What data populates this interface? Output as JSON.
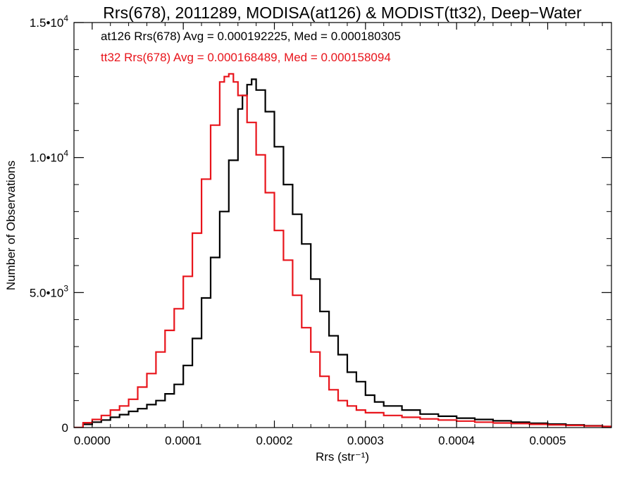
{
  "chart_data": {
    "type": "line",
    "title": "Rrs(678), 2011289, MODISA(at126) & MODIST(tt32), Deep−Water",
    "xlabel": "Rrs (str⁻¹)",
    "ylabel": "Number of Observations",
    "xlim": [
      -2e-05,
      0.00057
    ],
    "ylim": [
      0,
      15000
    ],
    "x_ticks": [
      0.0,
      0.0001,
      0.0002,
      0.0003,
      0.0004,
      0.0005
    ],
    "x_tick_labels": [
      "0.0000",
      "0.0001",
      "0.0002",
      "0.0003",
      "0.0004",
      "0.0005"
    ],
    "y_ticks": [
      0,
      5000,
      10000,
      15000
    ],
    "y_tick_labels": [
      {
        "mantissa": "0",
        "exponent": ""
      },
      {
        "mantissa": "5.0•10",
        "exponent": "3"
      },
      {
        "mantissa": "1.0•10",
        "exponent": "4"
      },
      {
        "mantissa": "1.5•10",
        "exponent": "4"
      }
    ],
    "grid": false,
    "step_histogram": true,
    "annotations": [
      {
        "text": "at126 Rrs(678) Avg = 0.000192225, Med = 0.000180305",
        "color": "#000000"
      },
      {
        "text": "tt32 Rrs(678) Avg = 0.000168489, Med = 0.000158094",
        "color": "#e8141b"
      }
    ],
    "series": [
      {
        "color": "#000000",
        "x": [
          -2e-05,
          -1e-05,
          0.0,
          1e-05,
          2e-05,
          3e-05,
          4e-05,
          5e-05,
          6e-05,
          7e-05,
          8e-05,
          9e-05,
          0.0001,
          0.00011,
          0.00012,
          0.00013,
          0.00014,
          0.00015,
          0.00016,
          0.000165,
          0.00017,
          0.000175,
          0.00018,
          0.00019,
          0.0002,
          0.00021,
          0.00022,
          0.00023,
          0.00024,
          0.00025,
          0.00026,
          0.00027,
          0.00028,
          0.00029,
          0.0003,
          0.00031,
          0.00032,
          0.00034,
          0.00036,
          0.00038,
          0.0004,
          0.00042,
          0.00044,
          0.00046,
          0.00048,
          0.0005,
          0.00052,
          0.00054,
          0.00056,
          0.00057
        ],
        "values": [
          0,
          120,
          200,
          280,
          380,
          480,
          600,
          700,
          850,
          1000,
          1250,
          1600,
          2300,
          3300,
          4800,
          6300,
          8000,
          9900,
          11800,
          12300,
          12700,
          12900,
          12500,
          11700,
          10400,
          9000,
          7900,
          6800,
          5500,
          4300,
          3400,
          2700,
          2050,
          1700,
          1200,
          950,
          800,
          650,
          500,
          420,
          350,
          300,
          250,
          200,
          160,
          130,
          100,
          70,
          40,
          30
        ]
      },
      {
        "color": "#e8141b",
        "x": [
          -2e-05,
          -1e-05,
          0.0,
          1e-05,
          2e-05,
          3e-05,
          4e-05,
          5e-05,
          6e-05,
          7e-05,
          8e-05,
          9e-05,
          0.0001,
          0.00011,
          0.00012,
          0.00013,
          0.00014,
          0.000145,
          0.00015,
          0.000155,
          0.00016,
          0.00017,
          0.00018,
          0.00019,
          0.0002,
          0.00021,
          0.00022,
          0.00023,
          0.00024,
          0.00025,
          0.00026,
          0.00027,
          0.00028,
          0.00029,
          0.0003,
          0.00032,
          0.00034,
          0.00036,
          0.00038,
          0.0004,
          0.00042,
          0.00044,
          0.00046,
          0.00048,
          0.0005,
          0.00052,
          0.00054,
          0.00056,
          0.00057
        ],
        "values": [
          0,
          180,
          300,
          450,
          650,
          800,
          1050,
          1500,
          2000,
          2800,
          3600,
          4400,
          5600,
          7200,
          9200,
          11200,
          12800,
          13000,
          13100,
          12800,
          12300,
          11300,
          10100,
          8700,
          7300,
          6200,
          4900,
          3700,
          2800,
          1900,
          1400,
          1000,
          800,
          650,
          550,
          450,
          380,
          320,
          280,
          240,
          200,
          170,
          150,
          120,
          100,
          80,
          60,
          40,
          30
        ]
      }
    ]
  }
}
